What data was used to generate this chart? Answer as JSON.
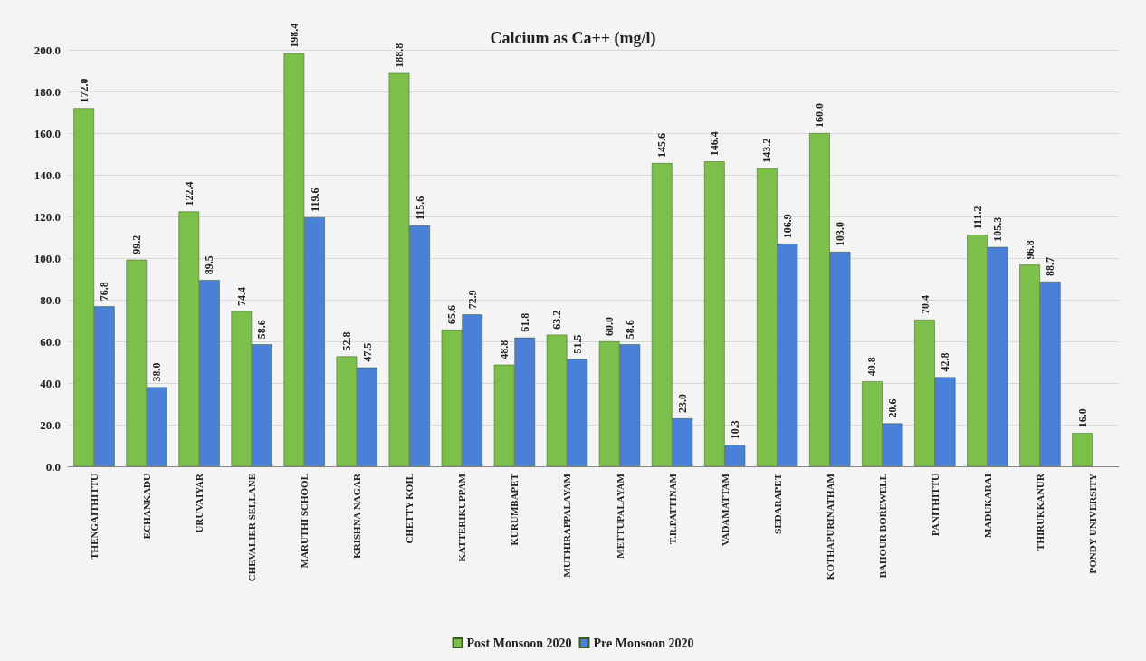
{
  "chart_data": {
    "type": "bar",
    "title": "Calcium as Ca++ (mg/l)",
    "categories": [
      "THENGAITHITTU",
      "ECHANKADU",
      "URUVAIYAR",
      "CHEVALIER SELLANE",
      "MARUTHI SCHOOL",
      "KRISHNA NAGAR",
      "CHETTY KOIL",
      "KATTERIKUPPAM",
      "KURUMBAPET",
      "MUTHIRAPPALAYAM",
      "METTUPALAYAM",
      "T.R.PATTINAM",
      "VADAMATTAM",
      "SEDARAPET",
      "KOTHAPURINATHAM",
      "BAHOUR BOREWELL",
      "PANITHITTU",
      "MADUKARAI",
      "THIRUKKANUR",
      "PONDY UNIVERSITY"
    ],
    "series": [
      {
        "name": "Post Monsoon 2020",
        "color": "#7cbf4a",
        "values": [
          172.0,
          99.2,
          122.4,
          74.4,
          198.4,
          52.8,
          188.8,
          65.6,
          48.8,
          63.2,
          60.0,
          145.6,
          146.4,
          143.2,
          160.0,
          40.8,
          70.4,
          111.2,
          96.8,
          16.0
        ],
        "value_labels": [
          "172.0",
          "99.2",
          "122.4",
          "74.4",
          "198.4",
          "52.8",
          "188.8",
          "65.6",
          "48.8",
          "63.2",
          "60.0",
          "145.6",
          "146.4",
          "143.2",
          "160.0",
          "40.8",
          "70.4",
          "111.2",
          "96.8",
          "16.0"
        ]
      },
      {
        "name": "Pre Monsoon 2020",
        "color": "#4a80d8",
        "values": [
          76.8,
          38.0,
          89.5,
          58.6,
          119.6,
          47.5,
          115.6,
          72.9,
          61.8,
          51.5,
          58.6,
          23.0,
          10.3,
          106.9,
          103.0,
          20.6,
          42.8,
          105.3,
          88.7,
          null
        ],
        "value_labels": [
          "76.8",
          "38.0",
          "89.5",
          "58.6",
          "119.6",
          "47.5",
          "115.6",
          "72.9",
          "61.8",
          "51.5",
          "58.6",
          "23.0",
          "10.3",
          "106.9",
          "103.0",
          "20.6",
          "42.8",
          "105.3",
          "88.7",
          null
        ]
      }
    ],
    "ylim": [
      0,
      200
    ],
    "yticks": [
      {
        "value": 0,
        "label": "0.0"
      },
      {
        "value": 20,
        "label": "20.0"
      },
      {
        "value": 40,
        "label": "40.0"
      },
      {
        "value": 60,
        "label": "60.0"
      },
      {
        "value": 80,
        "label": "80.0"
      },
      {
        "value": 100,
        "label": "100.0"
      },
      {
        "value": 120,
        "label": "120.0"
      },
      {
        "value": 140,
        "label": "140.0"
      },
      {
        "value": 160,
        "label": "160.0"
      },
      {
        "value": 180,
        "label": "180.0"
      },
      {
        "value": 200,
        "label": "200.0"
      }
    ],
    "grid": "y",
    "legend": "bottom"
  }
}
